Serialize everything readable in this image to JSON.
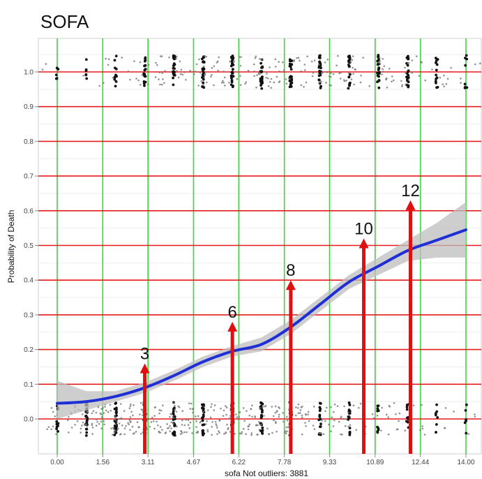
{
  "chart_data": {
    "type": "line",
    "title": "SOFA",
    "xlabel": "sofa Not outliers: 3881",
    "ylabel": "Probability of Death",
    "xlim": [
      0,
      14
    ],
    "ylim": [
      -0.05,
      1.1
    ],
    "x_ticks": [
      "0.00",
      "1.56",
      "3.11",
      "4.67",
      "6.22",
      "7.78",
      "9.33",
      "10.89",
      "12.44",
      "14.00"
    ],
    "x_tick_values": [
      0,
      1.56,
      3.11,
      4.67,
      6.22,
      7.78,
      9.33,
      10.89,
      12.44,
      14.0
    ],
    "y_ticks": [
      "0.0",
      "0.1",
      "0.2",
      "0.3",
      "0.4",
      "0.5",
      "0.6",
      "0.7",
      "0.8",
      "0.9",
      "1.0"
    ],
    "y_tick_values": [
      0,
      0.1,
      0.2,
      0.3,
      0.4,
      0.5,
      0.6,
      0.7,
      0.8,
      0.9,
      1.0
    ],
    "red_gridlines_y": [
      0,
      0.1,
      0.2,
      0.3,
      0.4,
      0.5,
      0.6,
      0.7,
      0.8,
      0.9,
      1.0
    ],
    "green_gridlines_x": [
      0,
      1.56,
      3.11,
      4.67,
      6.22,
      7.78,
      9.33,
      10.89,
      12.44,
      14.0
    ],
    "grid": true,
    "colors": {
      "curve": "#1f2fd6",
      "ci_band": "#bdbdbd",
      "red_grid": "#e31b1b",
      "green_grid": "#3fd13f",
      "arrow": "#e01010",
      "points": "#111111"
    },
    "series": [
      {
        "x": [
          0,
          1,
          2,
          3,
          4,
          5,
          6,
          7,
          8,
          9,
          10,
          11,
          12,
          13,
          14
        ],
        "y": [
          0.045,
          0.05,
          0.065,
          0.09,
          0.125,
          0.165,
          0.195,
          0.215,
          0.265,
          0.33,
          0.395,
          0.44,
          0.485,
          0.515,
          0.545
        ],
        "ci_lower": [
          0.0,
          0.025,
          0.05,
          0.075,
          0.11,
          0.15,
          0.18,
          0.195,
          0.245,
          0.31,
          0.375,
          0.415,
          0.455,
          0.465,
          0.465
        ],
        "ci_upper": [
          0.11,
          0.08,
          0.08,
          0.105,
          0.14,
          0.18,
          0.21,
          0.235,
          0.285,
          0.35,
          0.415,
          0.465,
          0.515,
          0.565,
          0.625
        ]
      }
    ],
    "rug_points": {
      "x_levels": [
        0,
        1,
        2,
        3,
        4,
        5,
        6,
        7,
        8,
        9,
        10,
        11,
        12,
        13,
        14
      ],
      "survived_density": [
        0.3,
        1,
        1,
        1,
        1,
        1,
        1,
        0.9,
        0.8,
        0.6,
        0.5,
        0.3,
        0.25,
        0.15,
        0.1
      ],
      "died_density": [
        0.1,
        0.1,
        0.3,
        0.6,
        0.9,
        1,
        1,
        1,
        1,
        1,
        0.9,
        0.8,
        0.7,
        0.4,
        0.2
      ]
    },
    "annotations": [
      {
        "text": "3",
        "x": 3,
        "y_top": 0.16
      },
      {
        "text": "6",
        "x": 6,
        "y_top": 0.28
      },
      {
        "text": "8",
        "x": 8,
        "y_top": 0.4
      },
      {
        "text": "10",
        "x": 10.5,
        "y_top": 0.52
      },
      {
        "text": "12",
        "x": 12.1,
        "y_top": 0.63
      }
    ]
  }
}
